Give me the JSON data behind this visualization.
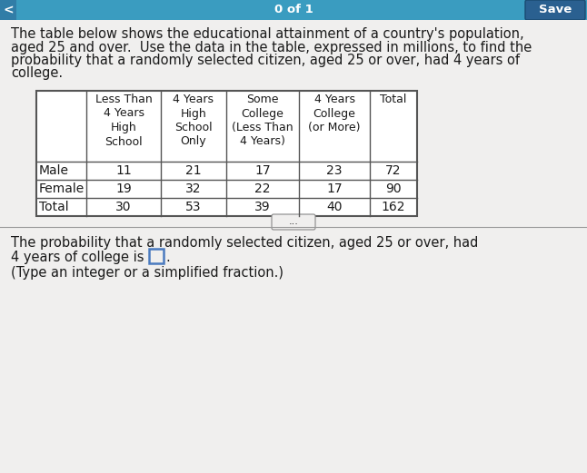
{
  "bg_color": "#c8c8c8",
  "top_bar_color": "#3a9cc0",
  "save_btn_color": "#2a6090",
  "content_bg": "#f0efee",
  "table_bg": "#ffffff",
  "top_bar_text": "0 of 1",
  "save_btn_text": "Save",
  "title_text": "The table below shows the educational attainment of a country's population,\naged 25 and over.  Use the data in the table, expressed in millions, to find the\nprobability that a randomly selected citizen, aged 25 or over, had 4 years of\ncollege.",
  "col_headers": [
    "Less Than\n4 Years\nHigh\nSchool",
    "4 Years\nHigh\nSchool\nOnly",
    "Some\nCollege\n(Less Than\n4 Years)",
    "4 Years\nCollege\n(or More)",
    "Total"
  ],
  "row_labels": [
    "Male",
    "Female",
    "Total"
  ],
  "table_data": [
    [
      "11",
      "21",
      "17",
      "23",
      "72"
    ],
    [
      "19",
      "32",
      "22",
      "17",
      "90"
    ],
    [
      "30",
      "53",
      "39",
      "40",
      "162"
    ]
  ],
  "bottom_text1": "The probability that a randomly selected citizen, aged 25 or over, had",
  "bottom_text2": "4 years of college is",
  "bottom_text3": ".",
  "bottom_text4": "(Type an integer or a simplified fraction.)",
  "dots_text": "...",
  "font_size_title": 10.5,
  "font_size_table": 10,
  "font_size_col_header": 9,
  "font_size_bottom": 10.5,
  "text_color": "#1a1a1a",
  "table_border_color": "#555555",
  "input_box_color": "#4a7abf"
}
